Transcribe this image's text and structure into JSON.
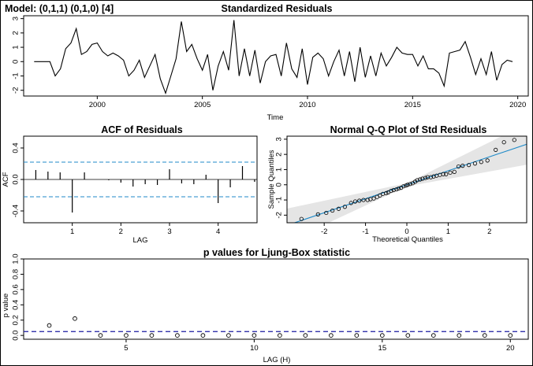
{
  "model_label": "Model: (0,1,1) (0,1,0) [4]",
  "colors": {
    "ref": "#1f8ac8",
    "ljung_ref": "#1a1aa0",
    "band": "#e5e5e5",
    "ink": "#000000"
  },
  "chart_data": [
    {
      "id": "residuals",
      "type": "line",
      "title": "Standardized Residuals",
      "xlabel": "Time",
      "ylabel": "",
      "xlim": [
        1996.5,
        2020.5
      ],
      "ylim": [
        -2.4,
        3.2
      ],
      "xticks": [
        2000,
        2005,
        2010,
        2015,
        2020
      ],
      "yticks": [
        -2,
        -1,
        0,
        1,
        2,
        3
      ],
      "x": [
        1997.0,
        1997.25,
        1997.5,
        1997.75,
        1998.0,
        1998.25,
        1998.5,
        1998.75,
        1999.0,
        1999.25,
        1999.5,
        1999.75,
        2000.0,
        2000.25,
        2000.5,
        2000.75,
        2001.0,
        2001.25,
        2001.5,
        2001.75,
        2002.0,
        2002.25,
        2002.5,
        2002.75,
        2003.0,
        2003.25,
        2003.5,
        2003.75,
        2004.0,
        2004.25,
        2004.5,
        2004.75,
        2005.0,
        2005.25,
        2005.5,
        2005.75,
        2006.0,
        2006.25,
        2006.5,
        2006.75,
        2007.0,
        2007.25,
        2007.5,
        2007.75,
        2008.0,
        2008.25,
        2008.5,
        2008.75,
        2009.0,
        2009.25,
        2009.5,
        2009.75,
        2010.0,
        2010.25,
        2010.5,
        2010.75,
        2011.0,
        2011.25,
        2011.5,
        2011.75,
        2012.0,
        2012.25,
        2012.5,
        2012.75,
        2013.0,
        2013.25,
        2013.5,
        2013.75,
        2014.0,
        2014.25,
        2014.5,
        2014.75,
        2015.0,
        2015.25,
        2015.5,
        2015.75,
        2016.0,
        2016.25,
        2016.5,
        2016.75,
        2017.0,
        2017.25,
        2017.5,
        2017.75,
        2018.0,
        2018.25,
        2018.5,
        2018.75,
        2019.0,
        2019.25,
        2019.5,
        2019.75
      ],
      "values": [
        0.0,
        0.0,
        0.0,
        0.0,
        -1.0,
        -0.5,
        0.9,
        1.3,
        2.3,
        0.5,
        0.7,
        1.2,
        1.3,
        0.7,
        0.4,
        0.6,
        0.4,
        0.1,
        -1.0,
        -0.6,
        0.1,
        -1.1,
        -0.3,
        0.5,
        -1.2,
        -2.2,
        -1.0,
        0.2,
        2.8,
        0.7,
        1.2,
        0.2,
        -0.6,
        0.5,
        -2.0,
        -0.3,
        0.7,
        -0.6,
        2.9,
        -1.0,
        0.9,
        -1.0,
        0.8,
        -1.5,
        0.0,
        0.4,
        0.5,
        -1.0,
        1.3,
        -0.5,
        -1.1,
        0.9,
        -1.6,
        0.3,
        0.6,
        0.2,
        -1.0,
        0.0,
        0.8,
        -1.0,
        0.7,
        -1.4,
        1.0,
        -1.1,
        0.4,
        -1.0,
        0.6,
        -0.3,
        0.3,
        1.0,
        0.6,
        0.5,
        0.5,
        -0.3,
        0.4,
        -0.5,
        -0.5,
        -0.8,
        -1.7,
        0.6,
        0.7,
        0.8,
        1.4,
        0.3,
        -0.9,
        0.2,
        -0.9,
        0.7,
        -1.3,
        -0.2,
        0.1,
        0.0
      ]
    },
    {
      "id": "acf",
      "type": "bar",
      "title": "ACF of Residuals",
      "xlabel": "LAG",
      "ylabel": "ACF",
      "xlim": [
        0.0,
        4.8
      ],
      "ylim": [
        -0.55,
        0.55
      ],
      "xticks": [
        1,
        2,
        3,
        4
      ],
      "yticks": [
        -0.4,
        0.0,
        0.4
      ],
      "ytick_labels": [
        "-0.4",
        "0.0",
        "0.4"
      ],
      "reference_lines": [
        0.22,
        -0.22
      ],
      "x": [
        0.25,
        0.5,
        0.75,
        1.0,
        1.25,
        1.5,
        1.75,
        2.0,
        2.25,
        2.5,
        2.75,
        3.0,
        3.25,
        3.5,
        3.75,
        4.0,
        4.25,
        4.5,
        4.75
      ],
      "values": [
        0.12,
        0.1,
        0.09,
        -0.42,
        0.09,
        0.0,
        -0.01,
        -0.04,
        -0.09,
        -0.06,
        -0.07,
        0.13,
        -0.05,
        -0.06,
        0.06,
        -0.3,
        -0.1,
        0.17,
        -0.03
      ]
    },
    {
      "id": "qq",
      "type": "scatter",
      "title": "Normal Q-Q Plot of Std Residuals",
      "xlabel": "Theoretical Quantiles",
      "ylabel": "Sample Quantiles",
      "xlim": [
        -2.9,
        2.9
      ],
      "ylim": [
        -2.5,
        3.2
      ],
      "xticks": [
        -2,
        -1,
        0,
        1,
        2
      ],
      "yticks": [
        -2,
        -1,
        0,
        1,
        2,
        3
      ],
      "reference_line": {
        "intercept": 0.0,
        "slope": 0.92
      },
      "band_halfwidth": [
        1.1,
        0.1,
        1.35
      ],
      "points": [
        [
          -2.55,
          -2.25
        ],
        [
          -2.15,
          -1.95
        ],
        [
          -1.95,
          -1.85
        ],
        [
          -1.8,
          -1.7
        ],
        [
          -1.65,
          -1.58
        ],
        [
          -1.5,
          -1.45
        ],
        [
          -1.35,
          -1.2
        ],
        [
          -1.25,
          -1.1
        ],
        [
          -1.15,
          -1.05
        ],
        [
          -1.05,
          -1.0
        ],
        [
          -0.95,
          -1.0
        ],
        [
          -0.88,
          -0.95
        ],
        [
          -0.8,
          -0.9
        ],
        [
          -0.72,
          -0.8
        ],
        [
          -0.65,
          -0.7
        ],
        [
          -0.58,
          -0.6
        ],
        [
          -0.5,
          -0.55
        ],
        [
          -0.45,
          -0.5
        ],
        [
          -0.38,
          -0.4
        ],
        [
          -0.32,
          -0.35
        ],
        [
          -0.25,
          -0.3
        ],
        [
          -0.2,
          -0.25
        ],
        [
          -0.14,
          -0.2
        ],
        [
          -0.08,
          -0.1
        ],
        [
          -0.02,
          -0.05
        ],
        [
          0.02,
          0.0
        ],
        [
          0.08,
          0.05
        ],
        [
          0.14,
          0.1
        ],
        [
          0.2,
          0.2
        ],
        [
          0.25,
          0.3
        ],
        [
          0.32,
          0.35
        ],
        [
          0.38,
          0.4
        ],
        [
          0.45,
          0.45
        ],
        [
          0.5,
          0.5
        ],
        [
          0.58,
          0.5
        ],
        [
          0.65,
          0.55
        ],
        [
          0.72,
          0.6
        ],
        [
          0.8,
          0.65
        ],
        [
          0.88,
          0.7
        ],
        [
          0.95,
          0.7
        ],
        [
          1.05,
          0.8
        ],
        [
          1.15,
          0.85
        ],
        [
          1.25,
          1.2
        ],
        [
          1.35,
          1.25
        ],
        [
          1.5,
          1.3
        ],
        [
          1.65,
          1.4
        ],
        [
          1.8,
          1.5
        ],
        [
          1.95,
          1.6
        ],
        [
          2.15,
          2.3
        ],
        [
          2.35,
          2.8
        ],
        [
          2.6,
          2.95
        ]
      ]
    },
    {
      "id": "ljung",
      "type": "scatter",
      "title": "p values for Ljung-Box statistic",
      "xlabel": "LAG (H)",
      "ylabel": "p value",
      "xlim": [
        1.0,
        20.7
      ],
      "ylim": [
        -0.05,
        1.0
      ],
      "xticks": [
        5,
        10,
        15,
        20
      ],
      "yticks": [
        0.0,
        0.2,
        0.4,
        0.6,
        0.8,
        1.0
      ],
      "ytick_labels": [
        "0.0",
        "0.2",
        "0.4",
        "0.6",
        "0.8",
        "1.0"
      ],
      "reference_line": 0.05,
      "x": [
        2,
        3,
        4,
        5,
        6,
        7,
        8,
        9,
        10,
        11,
        12,
        13,
        14,
        15,
        16,
        17,
        18,
        19,
        20
      ],
      "values": [
        0.13,
        0.22,
        0.0,
        0.0,
        0.0,
        0.0,
        0.0,
        0.0,
        0.0,
        0.0,
        0.0,
        0.0,
        0.0,
        0.0,
        0.0,
        0.0,
        0.0,
        0.0,
        0.0
      ]
    }
  ]
}
